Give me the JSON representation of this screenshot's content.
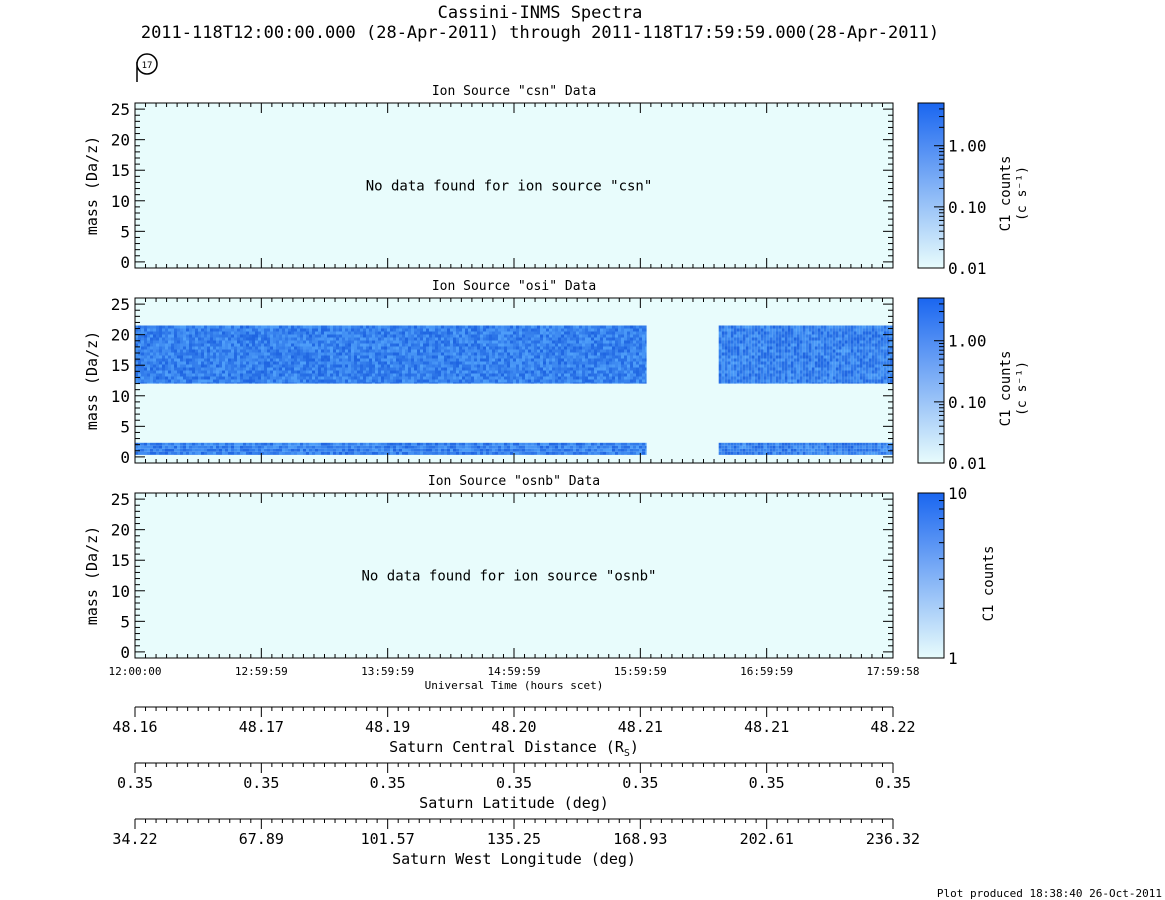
{
  "header": {
    "title": "Cassini-INMS Spectra",
    "subtitle": "2011-118T12:00:00.000 (28-Apr-2011) through 2011-118T17:59:59.000(28-Apr-2011)",
    "orbit_badge": "17",
    "footer": "Plot produced 18:38:40 26-Oct-2011"
  },
  "chart_data": [
    {
      "type": "heatmap",
      "title": "Ion Source \"csn\" Data",
      "ylabel": "mass (Da/z)",
      "yticks": [
        "0",
        "5",
        "10",
        "15",
        "20",
        "25"
      ],
      "ylim": [
        -1,
        26
      ],
      "no_data_message": "No data found for ion source \"csn\"",
      "colorbar": {
        "label": "C1 counts",
        "units": "(c s⁻¹)",
        "scale": "log",
        "ticks": [
          "0.01",
          "0.10",
          "1.00"
        ],
        "range": [
          0.01,
          5
        ]
      },
      "bands": []
    },
    {
      "type": "heatmap",
      "title": "Ion Source \"osi\" Data",
      "ylabel": "mass (Da/z)",
      "yticks": [
        "0",
        "5",
        "10",
        "15",
        "20",
        "25"
      ],
      "ylim": [
        -1,
        26
      ],
      "no_data_message": "",
      "colorbar": {
        "label": "C1 counts",
        "units": "(c s⁻¹)",
        "scale": "log",
        "ticks": [
          "0.01",
          "0.10",
          "1.00"
        ],
        "range": [
          0.01,
          5
        ]
      },
      "bands": [
        {
          "mass_range": [
            12,
            21.5
          ],
          "time_ranges": [
            [
              0,
              4.05
            ],
            [
              4.62,
              6.0
            ]
          ],
          "level": "high"
        },
        {
          "mass_range": [
            0.3,
            2.3
          ],
          "time_ranges": [
            [
              0,
              4.05
            ],
            [
              4.62,
              6.0
            ]
          ],
          "level": "high"
        }
      ]
    },
    {
      "type": "heatmap",
      "title": "Ion Source \"osnb\" Data",
      "ylabel": "mass (Da/z)",
      "yticks": [
        "0",
        "5",
        "10",
        "15",
        "20",
        "25"
      ],
      "ylim": [
        -1,
        26
      ],
      "no_data_message": "No data found for ion source \"osnb\"",
      "colorbar": {
        "label": "C1 counts",
        "units": "",
        "scale": "log",
        "ticks": [
          "1",
          "10"
        ],
        "range": [
          1,
          10
        ]
      },
      "bands": []
    }
  ],
  "time_axis": {
    "label": "Universal Time (hours scet)",
    "ticks": [
      "12:00:00",
      "12:59:59",
      "13:59:59",
      "14:59:59",
      "15:59:59",
      "16:59:59",
      "17:59:58"
    ]
  },
  "ephemeris": [
    {
      "label": "Saturn Central Distance (R",
      "label_sub": "S",
      "label_end": ")",
      "values": [
        "48.16",
        "48.17",
        "48.19",
        "48.20",
        "48.21",
        "48.21",
        "48.22"
      ]
    },
    {
      "label": "Saturn Latitude (deg)",
      "label_sub": "",
      "label_end": "",
      "values": [
        "0.35",
        "0.35",
        "0.35",
        "0.35",
        "0.35",
        "0.35",
        "0.35"
      ]
    },
    {
      "label": "Saturn West Longitude (deg)",
      "label_sub": "",
      "label_end": "",
      "values": [
        "34.22",
        "67.89",
        "101.57",
        "135.25",
        "168.93",
        "202.61",
        "236.32"
      ]
    }
  ],
  "colors": {
    "background_fill": "#e8fcfc",
    "colorbar_low": "#e8fcfc",
    "colorbar_high": "#1a66f0",
    "band_base": "#3c82ee"
  }
}
